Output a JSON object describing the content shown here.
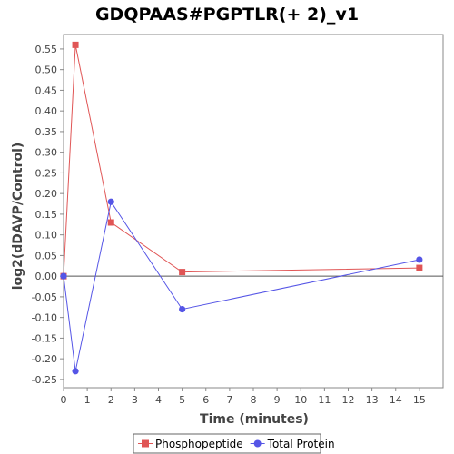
{
  "chart_data": {
    "type": "line",
    "title": "GDQPAAS#PGPTLR(+ 2)_v1",
    "xlabel": "Time (minutes)",
    "ylabel": "log2(dDAVP/Control)",
    "xlim": [
      0,
      16
    ],
    "ylim": [
      -0.27,
      0.585
    ],
    "x_ticks": [
      0,
      1,
      2,
      3,
      4,
      5,
      6,
      7,
      8,
      9,
      10,
      11,
      12,
      13,
      14,
      15
    ],
    "y_ticks": [
      -0.25,
      -0.2,
      -0.15,
      -0.1,
      -0.05,
      0.0,
      0.05,
      0.1,
      0.15,
      0.2,
      0.25,
      0.3,
      0.35,
      0.4,
      0.45,
      0.5,
      0.55
    ],
    "y_tick_labels": [
      "-0.25",
      "-0.20",
      "-0.15",
      "-0.10",
      "-0.05",
      "0.00",
      "0.05",
      "0.10",
      "0.15",
      "0.20",
      "0.25",
      "0.30",
      "0.35",
      "0.40",
      "0.45",
      "0.50",
      "0.55"
    ],
    "grid": false,
    "legend_position": "bottom",
    "series": [
      {
        "name": "Phosphopeptide",
        "color": "#e05555",
        "marker": "square",
        "x": [
          0,
          0.5,
          2,
          5,
          15
        ],
        "y": [
          0.0,
          0.56,
          0.13,
          0.01,
          0.02
        ]
      },
      {
        "name": "Total Protein",
        "color": "#5555e6",
        "marker": "circle",
        "x": [
          0,
          0.5,
          2,
          5,
          15
        ],
        "y": [
          0.0,
          -0.23,
          0.18,
          -0.08,
          0.04
        ]
      }
    ]
  }
}
